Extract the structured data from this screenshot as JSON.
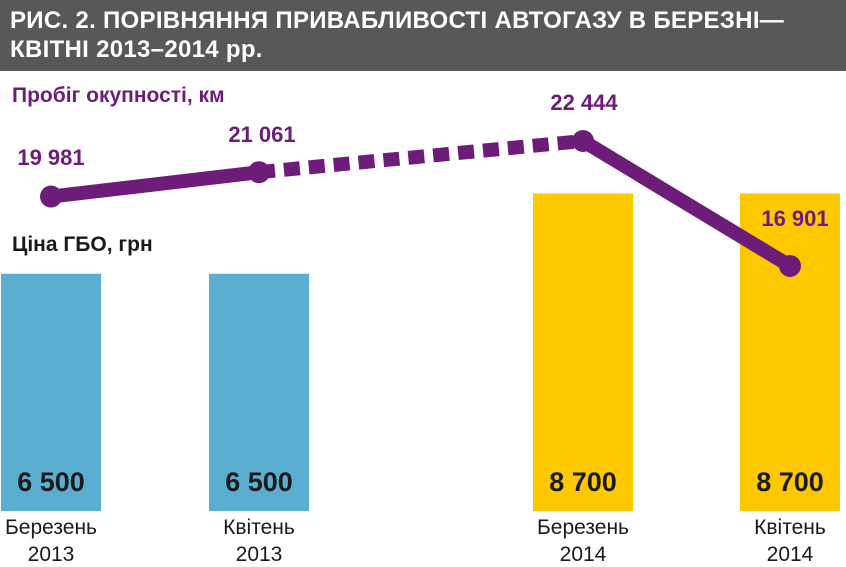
{
  "figure": {
    "title_line1": "РИС. 2. ПОРІВНЯННЯ ПРИВАБЛИВОСТІ АВТОГАЗУ В БЕРЕЗНІ—",
    "title_line2": "КВІТНІ 2013–2014 рр."
  },
  "chart_data": {
    "type": "bar",
    "title": "РИС. 2. ПОРІВНЯННЯ ПРИВАБЛИВОСТІ АВТОГАЗУ В БЕРЕЗНІ—КВІТНІ 2013–2014 рр.",
    "categories": [
      {
        "line1": "Березень",
        "line2": "2013"
      },
      {
        "line1": "Квітень",
        "line2": "2013"
      },
      {
        "line1": "Березень",
        "line2": "2014"
      },
      {
        "line1": "Квітень",
        "line2": "2014"
      }
    ],
    "series": [
      {
        "name": "Ціна ГБО, грн",
        "type": "bar",
        "values": [
          6500,
          6500,
          8700,
          8700
        ],
        "labels": [
          "6 500",
          "6 500",
          "8 700",
          "8 700"
        ],
        "colors": [
          "#5aafd1",
          "#5aafd1",
          "#fdc800",
          "#fdc800"
        ]
      },
      {
        "name": "Пробіг окупності, км",
        "type": "line",
        "values": [
          19981,
          21061,
          22444,
          16901
        ],
        "labels": [
          "19 981",
          "21 061",
          "22 444",
          "16 901"
        ],
        "color": "#6d1d79",
        "dashed_segment": [
          1,
          2
        ]
      }
    ],
    "grid": false
  }
}
